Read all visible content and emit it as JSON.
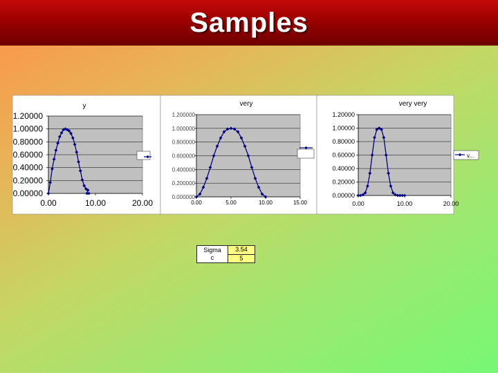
{
  "slide": {
    "title": "Samples"
  },
  "colors": {
    "series": "#000080",
    "plot_bg": "#c0c0c0",
    "title_bar": "#a00000",
    "cell_highlight": "#ffff80"
  },
  "chart_data": [
    {
      "type": "line",
      "title": "y",
      "yticks": [
        "0.00000",
        "0.20000",
        "0.40000",
        "0.60000",
        "0.80000",
        "1.00000",
        "1.20000"
      ],
      "xticks": [
        "0.00",
        "10.00",
        "20.00"
      ],
      "xlim": [
        0,
        20
      ],
      "ylim": [
        0,
        1.2
      ],
      "legend": "right, empty box",
      "series": [
        {
          "x": [
            0.0,
            0.4,
            0.8,
            1.2,
            1.6,
            2.0,
            2.4,
            2.8,
            3.2,
            3.6,
            4.0,
            4.4,
            4.8,
            5.2,
            5.6,
            6.0,
            6.4,
            6.8,
            7.2,
            7.6,
            8.0,
            8.4,
            8.2,
            8.6
          ],
          "y": [
            0.0,
            0.17,
            0.38,
            0.53,
            0.67,
            0.78,
            0.88,
            0.94,
            0.99,
            1.0,
            0.99,
            0.97,
            0.93,
            0.86,
            0.76,
            0.64,
            0.49,
            0.35,
            0.21,
            0.12,
            0.07,
            0.05,
            0.0,
            0.0
          ]
        }
      ]
    },
    {
      "type": "line",
      "title": "very",
      "yticks": [
        "0.000000",
        "0.200000",
        "0.400000",
        "0.600000",
        "0.800000",
        "1.000000",
        "1.200000"
      ],
      "xticks": [
        "0.00",
        "5.00",
        "10.00",
        "15.00"
      ],
      "xlim": [
        0,
        15
      ],
      "ylim": [
        0,
        1.2
      ],
      "legend": "right, empty box",
      "series": [
        {
          "x": [
            0.0,
            0.5,
            1.0,
            1.5,
            2.0,
            2.5,
            3.0,
            3.5,
            4.0,
            4.5,
            5.0,
            5.5,
            6.0,
            6.5,
            7.0,
            7.5,
            8.0,
            8.5,
            9.0,
            9.5,
            10.0
          ],
          "y": [
            0.0,
            0.04,
            0.14,
            0.27,
            0.43,
            0.6,
            0.74,
            0.86,
            0.95,
            0.99,
            1.0,
            0.99,
            0.95,
            0.86,
            0.74,
            0.6,
            0.43,
            0.27,
            0.14,
            0.04,
            0.0
          ]
        }
      ]
    },
    {
      "type": "line",
      "title": "very very",
      "yticks": [
        "0.00000",
        "0.20000",
        "0.40000",
        "0.60000",
        "0.80000",
        "1.00000",
        "1.20000"
      ],
      "xticks": [
        "0.00",
        "10.00",
        "20.00"
      ],
      "xlim": [
        0,
        20
      ],
      "ylim": [
        0,
        1.2
      ],
      "legend": "right",
      "legend_label": "v...",
      "series": [
        {
          "name": "v...",
          "x": [
            0.0,
            0.5,
            1.0,
            1.5,
            2.0,
            2.5,
            3.0,
            3.5,
            4.0,
            4.5,
            5.0,
            5.5,
            6.0,
            6.5,
            7.0,
            7.5,
            8.0,
            8.5,
            9.0,
            9.5,
            10.0
          ],
          "y": [
            0.0,
            0.0,
            0.01,
            0.04,
            0.14,
            0.33,
            0.6,
            0.86,
            0.98,
            1.0,
            0.98,
            0.86,
            0.6,
            0.33,
            0.14,
            0.04,
            0.01,
            0.0,
            0.0,
            0.0,
            0.0
          ]
        }
      ]
    }
  ],
  "table": {
    "label": "Sigma\nc",
    "value": "3.54",
    "value2": "5"
  }
}
